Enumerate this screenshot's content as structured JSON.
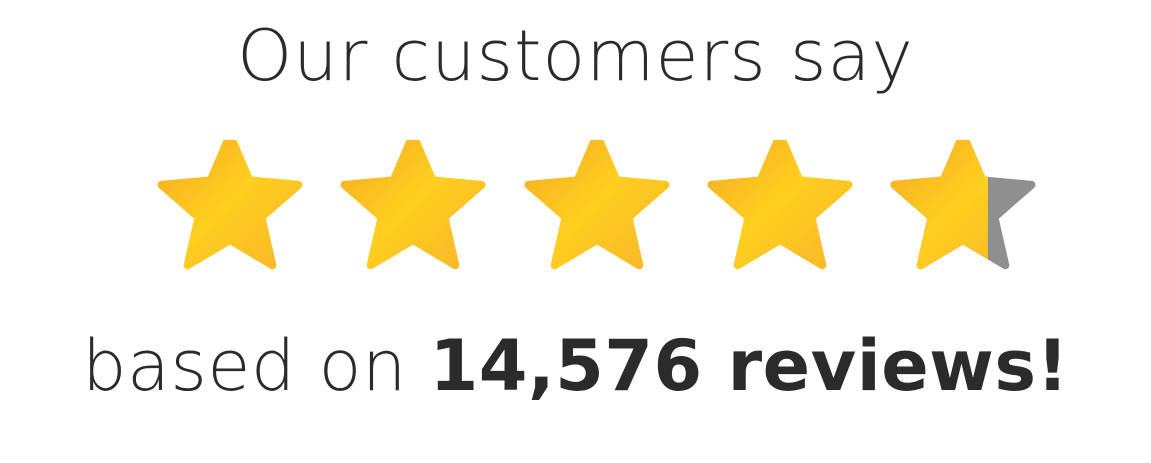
{
  "rating": {
    "headline": "Our customers say",
    "stars_total": 5,
    "stars_value": 4.5,
    "based_on_prefix": "based on",
    "review_count_text": "14,576 reviews!",
    "colors": {
      "star_fill_light": "#ffc62a",
      "star_fill_dark": "#f6a823",
      "star_empty": "#8f8f8f",
      "text": "#2b2b2b"
    }
  }
}
